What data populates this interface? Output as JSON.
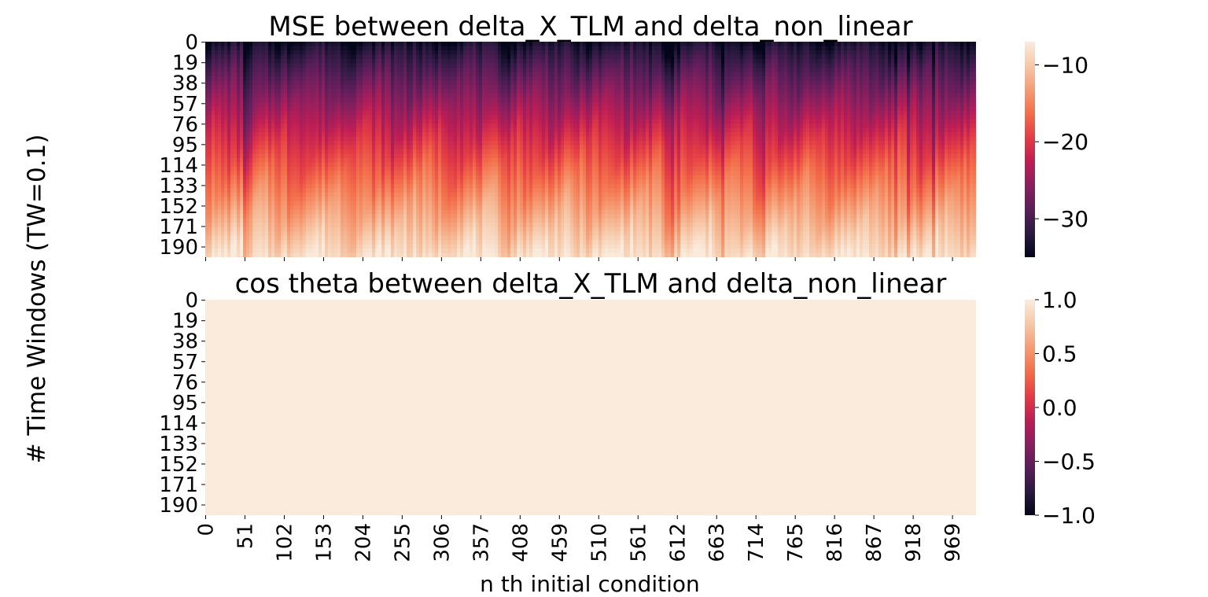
{
  "figure": {
    "ylabel": "# Time Windows (TW=0.1)",
    "xlabel": "n th initial condition"
  },
  "chart_data": [
    {
      "type": "heatmap",
      "title": "MSE between delta_X_TLM and delta_non_linear",
      "yticks": [
        "0",
        "19",
        "38",
        "57",
        "76",
        "95",
        "114",
        "133",
        "152",
        "171",
        "190"
      ],
      "ytick_values": [
        0,
        19,
        38,
        57,
        76,
        95,
        114,
        133,
        152,
        171,
        190
      ],
      "y_range": [
        0,
        200
      ],
      "x_range": [
        0,
        1000
      ],
      "xticks_visible": false,
      "colorbar": {
        "range": [
          -35,
          -7
        ],
        "ticks": [
          "−10",
          "−20",
          "−30"
        ],
        "tick_values": [
          -10,
          -20,
          -30
        ]
      },
      "pattern": "values increase with time window; diagonal streaks repeating about every 100 initial conditions",
      "colormap": "rocket",
      "colormap_stops": [
        "#03051a",
        "#2b1a41",
        "#5a1e5a",
        "#8a1f5f",
        "#be1e54",
        "#e43d45",
        "#f36e4a",
        "#f59c74",
        "#f6c8a8",
        "#faebdd"
      ]
    },
    {
      "type": "heatmap",
      "title": "cos theta between delta_X_TLM and delta_non_linear",
      "yticks": [
        "0",
        "19",
        "38",
        "57",
        "76",
        "95",
        "114",
        "133",
        "152",
        "171",
        "190"
      ],
      "ytick_values": [
        0,
        19,
        38,
        57,
        76,
        95,
        114,
        133,
        152,
        171,
        190
      ],
      "y_range": [
        0,
        200
      ],
      "x_range": [
        0,
        1000
      ],
      "xticks": [
        "0",
        "51",
        "102",
        "153",
        "204",
        "255",
        "306",
        "357",
        "408",
        "459",
        "510",
        "561",
        "612",
        "663",
        "714",
        "765",
        "816",
        "867",
        "918",
        "969"
      ],
      "xtick_values": [
        0,
        51,
        102,
        153,
        204,
        255,
        306,
        357,
        408,
        459,
        510,
        561,
        612,
        663,
        714,
        765,
        816,
        867,
        918,
        969
      ],
      "uniform_value": 1.0,
      "fill_color": "#faebdd",
      "colorbar": {
        "range": [
          -1.0,
          1.0
        ],
        "ticks": [
          "1.0",
          "0.5",
          "0.0",
          "−0.5",
          "−1.0"
        ],
        "tick_values": [
          1.0,
          0.5,
          0.0,
          -0.5,
          -1.0
        ]
      }
    }
  ]
}
